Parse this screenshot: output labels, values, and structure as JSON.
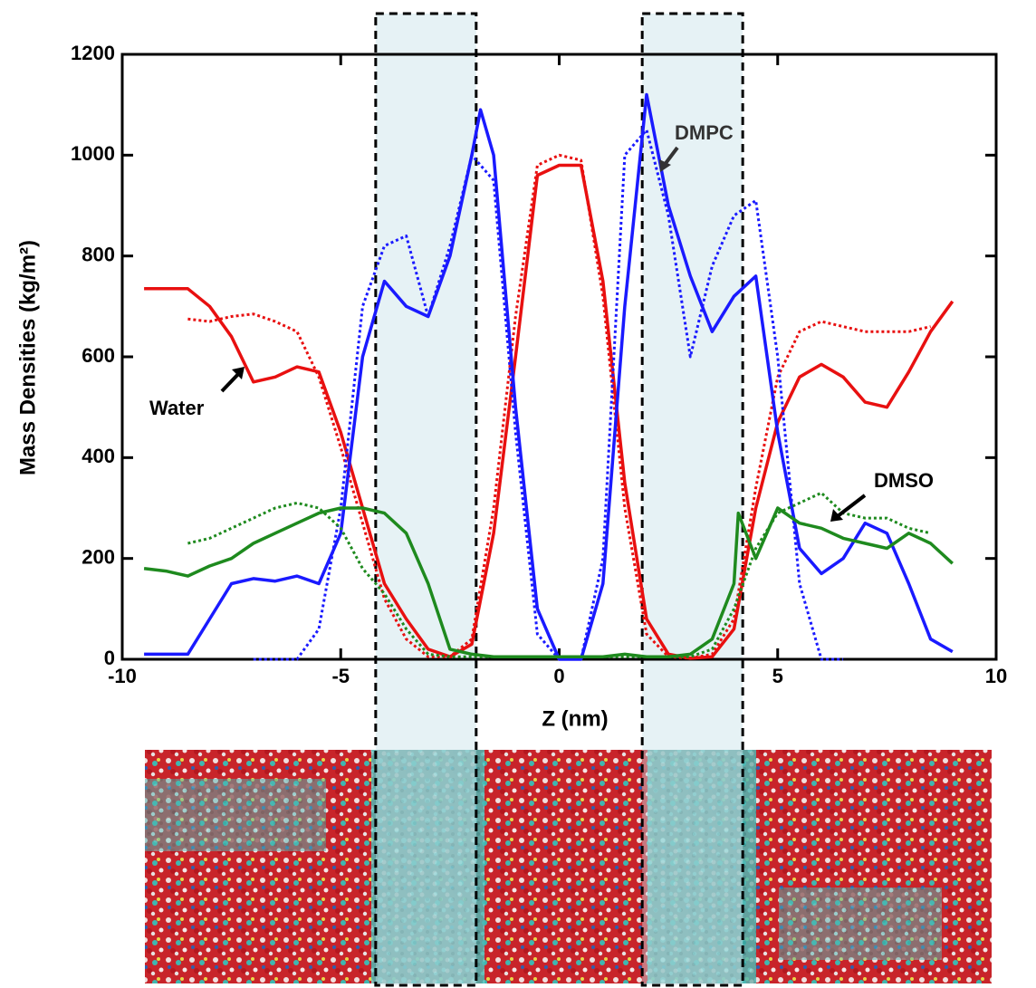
{
  "chart_data": {
    "type": "line",
    "x_label": "Z (nm)",
    "y_label": "Mass Densities (kg/m²)",
    "xlim": [
      -10,
      10
    ],
    "ylim": [
      0,
      1200
    ],
    "xticks": [
      -10,
      -5,
      0,
      5,
      10
    ],
    "yticks": [
      0,
      200,
      400,
      600,
      800,
      1000,
      1200
    ],
    "shaded_regions": [
      [
        -4.2,
        -1.9
      ],
      [
        1.9,
        4.2
      ]
    ],
    "annotations": [
      "Water",
      "DMPC",
      "DMSO"
    ],
    "series": [
      {
        "color": "#e81010",
        "style": "solid",
        "x": [
          -9.5,
          -9,
          -8.5,
          -8,
          -7.5,
          -7,
          -6.5,
          -6,
          -5.5,
          -5,
          -4.5,
          -4,
          -3.5,
          -3,
          -2.5,
          -2,
          -1.5,
          -1,
          -0.5,
          0,
          0.5,
          1,
          1.5,
          2,
          2.5,
          3,
          3.5,
          4,
          4.5,
          5,
          5.5,
          6,
          6.5,
          7,
          7.5,
          8,
          8.5,
          9
        ],
        "values": [
          735,
          735,
          735,
          700,
          640,
          550,
          560,
          580,
          570,
          450,
          300,
          150,
          80,
          20,
          5,
          30,
          250,
          600,
          960,
          980,
          980,
          750,
          350,
          80,
          10,
          2,
          5,
          60,
          300,
          470,
          560,
          585,
          560,
          510,
          500,
          570,
          650,
          710
        ]
      },
      {
        "color": "#e81010",
        "style": "dotted",
        "x": [
          -8.5,
          -8,
          -7.5,
          -7,
          -6.5,
          -6,
          -5.5,
          -5,
          -4.5,
          -4,
          -3.5,
          -3,
          -2.5,
          -2,
          -1.5,
          -1,
          -0.5,
          0,
          0.5,
          1,
          1.5,
          2,
          2.5,
          3,
          3.5,
          4,
          4.5,
          5,
          5.5,
          6,
          6.5,
          7,
          7.5,
          8,
          8.5
        ],
        "values": [
          675,
          670,
          680,
          685,
          670,
          650,
          560,
          420,
          270,
          120,
          40,
          5,
          5,
          40,
          300,
          680,
          980,
          1000,
          990,
          720,
          300,
          50,
          5,
          2,
          10,
          80,
          340,
          560,
          650,
          670,
          660,
          650,
          650,
          650,
          660
        ]
      },
      {
        "color": "#1a1aff",
        "style": "solid",
        "x": [
          -9.5,
          -9,
          -8.5,
          -8,
          -7.5,
          -7,
          -6.5,
          -6,
          -5.5,
          -5,
          -4.5,
          -4,
          -3.5,
          -3,
          -2.5,
          -2,
          -1.8,
          -1.5,
          -1,
          -0.5,
          0,
          0.5,
          1,
          1.5,
          2,
          2.5,
          3,
          3.5,
          4,
          4.5,
          5,
          5.5,
          6,
          6.5,
          7,
          7.5,
          8,
          8.5,
          9
        ],
        "values": [
          10,
          10,
          10,
          80,
          150,
          160,
          155,
          165,
          150,
          250,
          600,
          750,
          700,
          680,
          800,
          1000,
          1090,
          1000,
          500,
          100,
          0,
          0,
          150,
          700,
          1120,
          900,
          760,
          650,
          720,
          760,
          450,
          220,
          170,
          200,
          270,
          250,
          150,
          40,
          15
        ]
      },
      {
        "color": "#1a1aff",
        "style": "dotted",
        "x": [
          -7,
          -6.5,
          -6,
          -5.5,
          -5,
          -4.5,
          -4,
          -3.5,
          -3,
          -2.5,
          -2,
          -1.5,
          -1,
          -0.5,
          0,
          0.5,
          1,
          1.5,
          2,
          2.5,
          3,
          3.5,
          4,
          4.5,
          5,
          5.5,
          6,
          6.5
        ],
        "values": [
          0,
          0,
          0,
          60,
          300,
          700,
          820,
          840,
          680,
          820,
          1000,
          950,
          450,
          50,
          0,
          0,
          200,
          1000,
          1050,
          880,
          600,
          780,
          880,
          910,
          600,
          150,
          0,
          0
        ]
      },
      {
        "color": "#1e8a1e",
        "style": "solid",
        "x": [
          -9.5,
          -9,
          -8.5,
          -8,
          -7.5,
          -7,
          -6.5,
          -6,
          -5.5,
          -5,
          -4.5,
          -4,
          -3.5,
          -3,
          -2.5,
          -2,
          -1.5,
          -1,
          -0.5,
          0,
          0.5,
          1,
          1.5,
          2,
          2.5,
          3,
          3.5,
          4,
          4.1,
          4.5,
          5,
          5.5,
          6,
          6.5,
          7,
          7.5,
          8,
          8.5,
          9
        ],
        "values": [
          180,
          175,
          165,
          185,
          200,
          230,
          250,
          270,
          290,
          300,
          300,
          290,
          250,
          150,
          20,
          10,
          5,
          5,
          5,
          5,
          5,
          5,
          10,
          5,
          5,
          10,
          40,
          150,
          290,
          200,
          300,
          270,
          260,
          240,
          230,
          220,
          250,
          230,
          190
        ]
      },
      {
        "color": "#1e8a1e",
        "style": "dotted",
        "x": [
          -8.5,
          -8,
          -7.5,
          -7,
          -6.5,
          -6,
          -5.5,
          -5,
          -4.5,
          -4,
          -3.5,
          -3,
          -2.5,
          -2,
          -1,
          0,
          1,
          2,
          3,
          3.5,
          4,
          4.5,
          5,
          5.5,
          6,
          6.5,
          7,
          7.5,
          8,
          8.5
        ],
        "values": [
          230,
          240,
          260,
          280,
          300,
          310,
          300,
          260,
          180,
          130,
          60,
          10,
          5,
          5,
          5,
          5,
          5,
          5,
          5,
          20,
          100,
          220,
          290,
          310,
          330,
          290,
          280,
          280,
          260,
          250
        ]
      }
    ]
  }
}
